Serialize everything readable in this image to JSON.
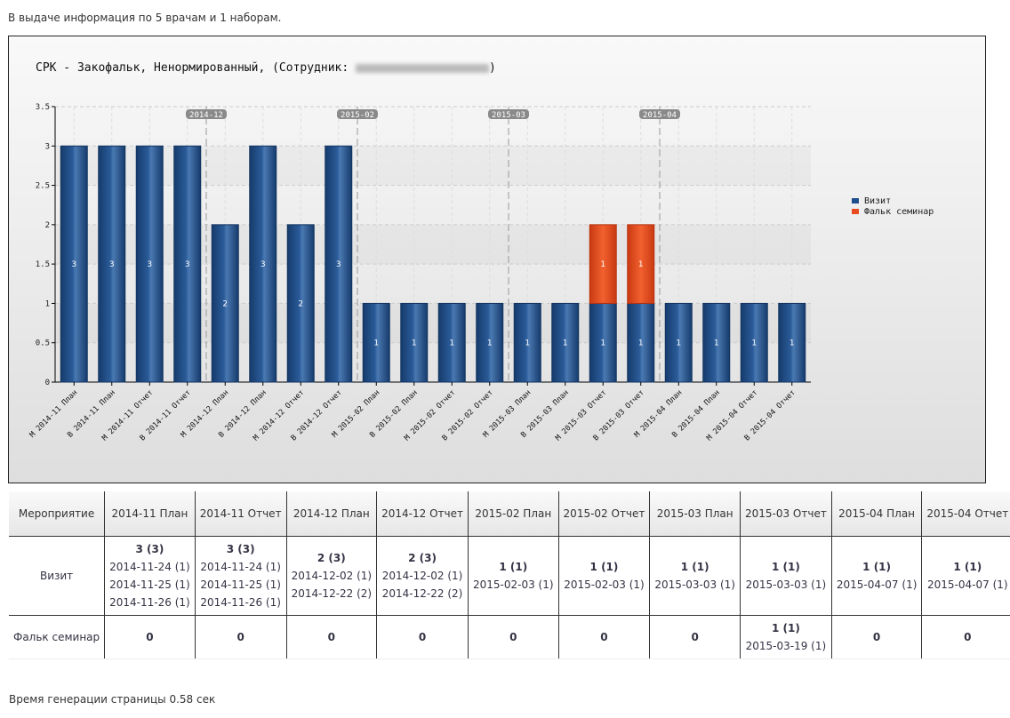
{
  "info_text": "В выдаче информация по 5 врачам и 1 наборам.",
  "footer_text": "Время генерации страницы 0.58 сек",
  "chart_data": {
    "type": "bar",
    "stacked": true,
    "title": "СРК - Закофальк, Ненормированный, (Сотрудник: ",
    "title_end": ")",
    "categories": [
      "М 2014-11  План",
      "В 2014-11  План",
      "М 2014-11 Отчет",
      "В 2014-11 Отчет",
      "М 2014-12  План",
      "В 2014-12  План",
      "М 2014-12 Отчет",
      "В 2014-12 Отчет",
      "М 2015-02  План",
      "В 2015-02  План",
      "М 2015-02 Отчет",
      "В 2015-02 Отчет",
      "М 2015-03  План",
      "В 2015-03  План",
      "М 2015-03 Отчет",
      "В 2015-03 Отчет",
      "М 2015-04  План",
      "В 2015-04  План",
      "М 2015-04 Отчет",
      "В 2015-04 Отчет"
    ],
    "series": [
      {
        "name": "Визит",
        "color": "#1f4e8c",
        "values": [
          3,
          3,
          3,
          3,
          2,
          3,
          2,
          3,
          1,
          1,
          1,
          1,
          1,
          1,
          1,
          1,
          1,
          1,
          1,
          1
        ]
      },
      {
        "name": "Фальк семинар",
        "color": "#e84c1e",
        "values": [
          0,
          0,
          0,
          0,
          0,
          0,
          0,
          0,
          0,
          0,
          0,
          0,
          0,
          0,
          1,
          1,
          0,
          0,
          0,
          0
        ]
      }
    ],
    "yticks": [
      "0",
      "0.5",
      "1",
      "1.5",
      "2",
      "2.5",
      "3",
      "3.5"
    ],
    "ylim": [
      0,
      3.5
    ],
    "markers": [
      {
        "label": "2014-12",
        "after": 3
      },
      {
        "label": "2015-02",
        "after": 7
      },
      {
        "label": "2015-03",
        "after": 11
      },
      {
        "label": "2015-04",
        "after": 15
      }
    ],
    "legend": "right"
  },
  "table": {
    "headers": [
      "Мероприятие",
      "2014-11 План",
      "2014-11 Отчет",
      "2014-12 План",
      "2014-12 Отчет",
      "2015-02 План",
      "2015-02 Отчет",
      "2015-03 План",
      "2015-03 Отчет",
      "2015-04 План",
      "2015-04 Отчет"
    ],
    "rows": [
      {
        "label": "Визит",
        "cells": [
          {
            "total": "3 (3)",
            "dates": [
              "2014-11-24 (1)",
              "2014-11-25 (1)",
              "2014-11-26 (1)"
            ]
          },
          {
            "total": "3 (3)",
            "dates": [
              "2014-11-24 (1)",
              "2014-11-25 (1)",
              "2014-11-26 (1)"
            ]
          },
          {
            "total": "2 (3)",
            "dates": [
              "2014-12-02 (1)",
              "2014-12-22 (2)"
            ]
          },
          {
            "total": "2 (3)",
            "dates": [
              "2014-12-02 (1)",
              "2014-12-22 (2)"
            ]
          },
          {
            "total": "1 (1)",
            "dates": [
              "2015-02-03 (1)"
            ]
          },
          {
            "total": "1 (1)",
            "dates": [
              "2015-02-03 (1)"
            ]
          },
          {
            "total": "1 (1)",
            "dates": [
              "2015-03-03 (1)"
            ]
          },
          {
            "total": "1 (1)",
            "dates": [
              "2015-03-03 (1)"
            ]
          },
          {
            "total": "1 (1)",
            "dates": [
              "2015-04-07 (1)"
            ]
          },
          {
            "total": "1 (1)",
            "dates": [
              "2015-04-07 (1)"
            ]
          }
        ]
      },
      {
        "label": "Фальк семинар",
        "cells": [
          {
            "total": "0",
            "dates": []
          },
          {
            "total": "0",
            "dates": []
          },
          {
            "total": "0",
            "dates": []
          },
          {
            "total": "0",
            "dates": []
          },
          {
            "total": "0",
            "dates": []
          },
          {
            "total": "0",
            "dates": []
          },
          {
            "total": "0",
            "dates": []
          },
          {
            "total": "1 (1)",
            "dates": [
              "2015-03-19 (1)"
            ]
          },
          {
            "total": "0",
            "dates": []
          },
          {
            "total": "0",
            "dates": []
          }
        ]
      }
    ]
  }
}
